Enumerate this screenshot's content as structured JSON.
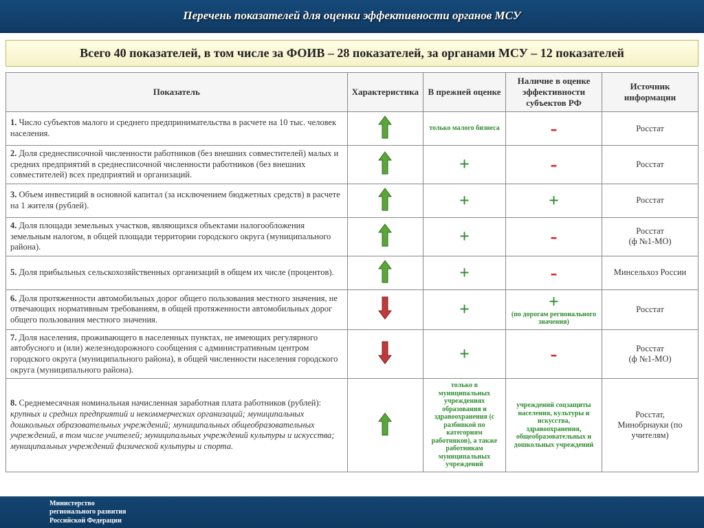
{
  "header": {
    "title": "Перечень показателей для оценки эффективности органов МСУ"
  },
  "summary": "Всего 40 показателей, в том числе за ФОИВ – 28 показателей, за органами МСУ – 12 показателей",
  "columns": {
    "indicator": "Показатель",
    "characteristic": "Характеристика",
    "previous": "В прежней оценке",
    "subjects": "Наличие в оценке эффективности субъектов РФ",
    "source": "Источник информации"
  },
  "rows": [
    {
      "idx": "1.",
      "text": "Число субъектов малого и среднего предпринимательства в расчете на 10 тыс. человек населения.",
      "char": "up",
      "prev_kind": "small-green",
      "prev_text": "только малого бизнеса",
      "subj_kind": "minus",
      "subj_text": "-",
      "source": "Росстат"
    },
    {
      "idx": "2.",
      "text": "Доля среднесписочной численности работников (без внешних совместителей) малых и средних предприятий в среднесписочной численности работников (без внешних совместителей) всех предприятий и организаций.",
      "char": "up",
      "prev_kind": "plus",
      "prev_text": "+",
      "subj_kind": "minus",
      "subj_text": "-",
      "source": "Росстат"
    },
    {
      "idx": "3.",
      "text": "Объем инвестиций в основной капитал (за исключением бюджетных средств) в расчете на 1 жителя (рублей).",
      "char": "up",
      "prev_kind": "plus",
      "prev_text": "+",
      "subj_kind": "plus",
      "subj_text": "+",
      "source": "Росстат"
    },
    {
      "idx": "4.",
      "text": "Доля площади земельных участков, являющихся объектами налогообложения земельным налогом, в общей площади территории городского округа (муниципального района).",
      "char": "up",
      "prev_kind": "plus",
      "prev_text": "+",
      "subj_kind": "minus",
      "subj_text": "-",
      "source": "Росстат\n(ф №1-МО)"
    },
    {
      "idx": "5.",
      "text": "Доля прибыльных сельскохозяйственных организаций в общем их числе (процентов).",
      "char": "up",
      "prev_kind": "plus",
      "prev_text": "+",
      "subj_kind": "minus",
      "subj_text": "-",
      "source": "Минсельхоз России"
    },
    {
      "idx": "6.",
      "text": "Доля протяженности автомобильных дорог общего пользования местного значения, не отвечающих нормативным требованиям, в общей протяженности автомобильных дорог общего пользования местного значения.",
      "char": "down",
      "prev_kind": "plus",
      "prev_text": "+",
      "subj_kind": "plus-note",
      "subj_text": "+",
      "subj_note": "(по дорогам регионального значения)",
      "source": "Росстат"
    },
    {
      "idx": "7.",
      "text": "Доля населения, проживающего в населенных пунктах, не имеющих регулярного автобусного и (или) железнодорожного сообщения с административным центром городского округа (муниципального района), в общей численности населения городского округа (муниципального района).",
      "char": "down",
      "prev_kind": "plus",
      "prev_text": "+",
      "subj_kind": "minus",
      "subj_text": "-",
      "source": "Росстат\n(ф №1-МО)"
    },
    {
      "idx": "8.",
      "text_lead": "Среднемесячная номинальная начисленная заработная плата работников (рублей): ",
      "text_italic": "крупных и средних предприятий и некоммерческих организаций; муниципальных дошкольных образовательных учреждений; муниципальных общеобразовательных учреждений, в том числе учителей; муниципальных учреждений культуры и искусства; муниципальных учреждений физической культуры и спорта.",
      "char": "up",
      "prev_kind": "small-green",
      "prev_text": "только в муниципальных учреждениях образования и здравоохранения (с разбивкой по категориям работников), а также работникам муниципальных учреждений",
      "subj_kind": "small-green",
      "subj_text": "учреждений соцзащиты населения, культуры и искусства, здравоохранения, общеобразовательных и дошкольных учреждений",
      "source": "Росстат,\nМинобрнауки (по учителям)"
    }
  ],
  "footer": {
    "line1": "Министерство",
    "line2": "регионального развития",
    "line3": "Российской Федерации"
  },
  "colors": {
    "header_bg_top": "#164a7a",
    "header_bg_bottom": "#0f3a63",
    "summary_bg": "#f6f2c8",
    "plus": "#2e8b2e",
    "minus": "#d22",
    "arrow_up_fill": "#5aa63a",
    "arrow_up_stroke": "#2e6e1f",
    "arrow_down_fill": "#c13a3a",
    "arrow_down_stroke": "#7a1f1f"
  }
}
